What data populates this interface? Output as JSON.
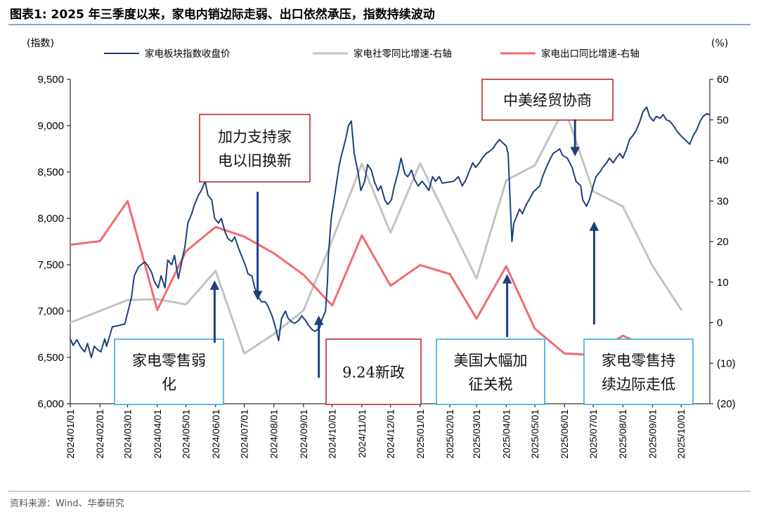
{
  "title": "图表1:  2025 年三季度以来，家电内销边际走弱、出口依然承压，指数持续波动",
  "source": "资料来源：Wind、华泰研究",
  "colors": {
    "index": "#1f3f7a",
    "retail": "#c3c3c3",
    "export": "#f26b6e",
    "arrow": "#1f3f7a",
    "box_red": "#c0282e",
    "box_blue": "#35a8df"
  },
  "chart_data": {
    "type": "line",
    "left_axis": {
      "unit_label": "(指数)",
      "min": 6000,
      "max": 9500,
      "ticks": [
        "6,000",
        "6,500",
        "7,000",
        "7,500",
        "8,000",
        "8,500",
        "9,000",
        "9,500"
      ]
    },
    "right_axis": {
      "unit_label": "(%)",
      "min": -20,
      "max": 60,
      "ticks": [
        "(20)",
        "(10)",
        "0",
        "10",
        "20",
        "30",
        "40",
        "50",
        "60"
      ]
    },
    "x_ticks": [
      "2024/01/01",
      "2024/02/01",
      "2024/03/01",
      "2024/04/01",
      "2024/05/01",
      "2024/06/01",
      "2024/07/01",
      "2024/08/01",
      "2024/09/01",
      "2024/10/01",
      "2024/11/01",
      "2024/12/01",
      "2025/01/01",
      "2025/02/01",
      "2025/03/01",
      "2025/04/01",
      "2025/05/01",
      "2025/06/01",
      "2025/07/01",
      "2025/08/01",
      "2025/09/01",
      "2025/10/01"
    ],
    "x_range": [
      "2024-01-01",
      "2025-10-31"
    ],
    "series": [
      {
        "name": "家电板块指数收盘价",
        "axis": "left",
        "points": [
          [
            "2024-01-01",
            6700
          ],
          [
            "2024-01-04",
            6630
          ],
          [
            "2024-01-08",
            6690
          ],
          [
            "2024-01-12",
            6610
          ],
          [
            "2024-01-16",
            6560
          ],
          [
            "2024-01-19",
            6650
          ],
          [
            "2024-01-23",
            6500
          ],
          [
            "2024-01-26",
            6620
          ],
          [
            "2024-01-30",
            6580
          ],
          [
            "2024-02-02",
            6560
          ],
          [
            "2024-02-06",
            6700
          ],
          [
            "2024-02-08",
            6620
          ],
          [
            "2024-02-14",
            6830
          ],
          [
            "2024-02-19",
            6840
          ],
          [
            "2024-02-23",
            6850
          ],
          [
            "2024-02-27",
            6860
          ],
          [
            "2024-03-01",
            6980
          ],
          [
            "2024-03-05",
            7150
          ],
          [
            "2024-03-08",
            7380
          ],
          [
            "2024-03-12",
            7470
          ],
          [
            "2024-03-15",
            7500
          ],
          [
            "2024-03-19",
            7530
          ],
          [
            "2024-03-22",
            7490
          ],
          [
            "2024-03-26",
            7420
          ],
          [
            "2024-03-29",
            7320
          ],
          [
            "2024-04-02",
            7250
          ],
          [
            "2024-04-05",
            7380
          ],
          [
            "2024-04-09",
            7250
          ],
          [
            "2024-04-12",
            7550
          ],
          [
            "2024-04-16",
            7500
          ],
          [
            "2024-04-19",
            7600
          ],
          [
            "2024-04-23",
            7350
          ],
          [
            "2024-04-26",
            7500
          ],
          [
            "2024-04-30",
            7700
          ],
          [
            "2024-05-03",
            7950
          ],
          [
            "2024-05-07",
            8050
          ],
          [
            "2024-05-10",
            8150
          ],
          [
            "2024-05-14",
            8250
          ],
          [
            "2024-05-17",
            8300
          ],
          [
            "2024-05-21",
            8400
          ],
          [
            "2024-05-24",
            8250
          ],
          [
            "2024-05-28",
            8200
          ],
          [
            "2024-05-31",
            8000
          ],
          [
            "2024-06-04",
            7950
          ],
          [
            "2024-06-07",
            8000
          ],
          [
            "2024-06-11",
            7850
          ],
          [
            "2024-06-14",
            7780
          ],
          [
            "2024-06-18",
            7750
          ],
          [
            "2024-06-21",
            7800
          ],
          [
            "2024-06-25",
            7680
          ],
          [
            "2024-06-28",
            7600
          ],
          [
            "2024-07-02",
            7500
          ],
          [
            "2024-07-05",
            7400
          ],
          [
            "2024-07-09",
            7380
          ],
          [
            "2024-07-12",
            7250
          ],
          [
            "2024-07-16",
            7150
          ],
          [
            "2024-07-19",
            7100
          ],
          [
            "2024-07-23",
            7100
          ],
          [
            "2024-07-26",
            7050
          ],
          [
            "2024-07-30",
            6950
          ],
          [
            "2024-08-02",
            6850
          ],
          [
            "2024-08-06",
            6680
          ],
          [
            "2024-08-09",
            6920
          ],
          [
            "2024-08-13",
            7000
          ],
          [
            "2024-08-16",
            6920
          ],
          [
            "2024-08-20",
            6880
          ],
          [
            "2024-08-23",
            6870
          ],
          [
            "2024-08-27",
            6900
          ],
          [
            "2024-08-30",
            6950
          ],
          [
            "2024-09-03",
            6900
          ],
          [
            "2024-09-06",
            6850
          ],
          [
            "2024-09-10",
            6800
          ],
          [
            "2024-09-13",
            6780
          ],
          [
            "2024-09-18",
            6820
          ],
          [
            "2024-09-20",
            6900
          ],
          [
            "2024-09-24",
            7000
          ],
          [
            "2024-09-26",
            7300
          ],
          [
            "2024-09-27",
            7600
          ],
          [
            "2024-09-30",
            8000
          ],
          [
            "2024-10-08",
            8550
          ],
          [
            "2024-10-10",
            8650
          ],
          [
            "2024-10-15",
            8850
          ],
          [
            "2024-10-18",
            9000
          ],
          [
            "2024-10-21",
            9050
          ],
          [
            "2024-10-24",
            8700
          ],
          [
            "2024-10-28",
            8500
          ],
          [
            "2024-10-31",
            8300
          ],
          [
            "2024-11-04",
            8400
          ],
          [
            "2024-11-07",
            8580
          ],
          [
            "2024-11-11",
            8520
          ],
          [
            "2024-11-14",
            8400
          ],
          [
            "2024-11-18",
            8300
          ],
          [
            "2024-11-21",
            8350
          ],
          [
            "2024-11-25",
            8200
          ],
          [
            "2024-11-28",
            8150
          ],
          [
            "2024-12-02",
            8200
          ],
          [
            "2024-12-05",
            8350
          ],
          [
            "2024-12-09",
            8500
          ],
          [
            "2024-12-12",
            8650
          ],
          [
            "2024-12-16",
            8480
          ],
          [
            "2024-12-19",
            8450
          ],
          [
            "2024-12-23",
            8520
          ],
          [
            "2024-12-26",
            8420
          ],
          [
            "2024-12-30",
            8350
          ],
          [
            "2025-01-03",
            8400
          ],
          [
            "2025-01-07",
            8350
          ],
          [
            "2025-01-10",
            8300
          ],
          [
            "2025-01-14",
            8450
          ],
          [
            "2025-01-17",
            8400
          ],
          [
            "2025-01-21",
            8450
          ],
          [
            "2025-01-24",
            8380
          ],
          [
            "2025-02-05",
            8400
          ],
          [
            "2025-02-10",
            8450
          ],
          [
            "2025-02-14",
            8350
          ],
          [
            "2025-02-18",
            8420
          ],
          [
            "2025-02-21",
            8500
          ],
          [
            "2025-02-25",
            8600
          ],
          [
            "2025-02-28",
            8550
          ],
          [
            "2025-03-04",
            8600
          ],
          [
            "2025-03-07",
            8650
          ],
          [
            "2025-03-11",
            8700
          ],
          [
            "2025-03-14",
            8720
          ],
          [
            "2025-03-18",
            8750
          ],
          [
            "2025-03-21",
            8800
          ],
          [
            "2025-03-25",
            8850
          ],
          [
            "2025-03-28",
            8820
          ],
          [
            "2025-04-01",
            8780
          ],
          [
            "2025-04-03",
            8700
          ],
          [
            "2025-04-07",
            7750
          ],
          [
            "2025-04-09",
            7950
          ],
          [
            "2025-04-11",
            8000
          ],
          [
            "2025-04-15",
            8100
          ],
          [
            "2025-04-18",
            8050
          ],
          [
            "2025-04-22",
            8150
          ],
          [
            "2025-04-25",
            8200
          ],
          [
            "2025-04-29",
            8280
          ],
          [
            "2025-05-06",
            8350
          ],
          [
            "2025-05-09",
            8450
          ],
          [
            "2025-05-13",
            8550
          ],
          [
            "2025-05-16",
            8620
          ],
          [
            "2025-05-20",
            8700
          ],
          [
            "2025-05-23",
            8720
          ],
          [
            "2025-05-27",
            8750
          ],
          [
            "2025-05-30",
            8680
          ],
          [
            "2025-06-04",
            8650
          ],
          [
            "2025-06-09",
            8550
          ],
          [
            "2025-06-13",
            8400
          ],
          [
            "2025-06-18",
            8350
          ],
          [
            "2025-06-20",
            8200
          ],
          [
            "2025-06-24",
            8130
          ],
          [
            "2025-06-27",
            8200
          ],
          [
            "2025-07-01",
            8350
          ],
          [
            "2025-07-04",
            8450
          ],
          [
            "2025-07-08",
            8500
          ],
          [
            "2025-07-11",
            8550
          ],
          [
            "2025-07-15",
            8600
          ],
          [
            "2025-07-18",
            8650
          ],
          [
            "2025-07-22",
            8600
          ],
          [
            "2025-07-25",
            8650
          ],
          [
            "2025-07-29",
            8700
          ],
          [
            "2025-08-01",
            8650
          ],
          [
            "2025-08-05",
            8750
          ],
          [
            "2025-08-08",
            8850
          ],
          [
            "2025-08-12",
            8900
          ],
          [
            "2025-08-15",
            8950
          ],
          [
            "2025-08-19",
            9050
          ],
          [
            "2025-08-22",
            9150
          ],
          [
            "2025-08-26",
            9200
          ],
          [
            "2025-08-29",
            9100
          ],
          [
            "2025-09-02",
            9050
          ],
          [
            "2025-09-05",
            9100
          ],
          [
            "2025-09-09",
            9080
          ],
          [
            "2025-09-12",
            9120
          ],
          [
            "2025-09-16",
            9060
          ],
          [
            "2025-09-19",
            9050
          ],
          [
            "2025-09-23",
            9000
          ],
          [
            "2025-09-26",
            8950
          ],
          [
            "2025-09-30",
            8900
          ],
          [
            "2025-10-10",
            8800
          ],
          [
            "2025-10-14",
            8900
          ],
          [
            "2025-10-17",
            8950
          ],
          [
            "2025-10-21",
            9050
          ],
          [
            "2025-10-24",
            9100
          ],
          [
            "2025-10-28",
            9130
          ],
          [
            "2025-10-30",
            9120
          ]
        ]
      },
      {
        "name": "家电社零同比增速-右轴",
        "axis": "right",
        "points": [
          [
            "2024-01-01",
            0
          ],
          [
            "2024-03-01",
            5.6
          ],
          [
            "2024-04-01",
            5.8
          ],
          [
            "2024-05-01",
            4.5
          ],
          [
            "2024-06-01",
            12.8
          ],
          [
            "2024-07-01",
            -7.6
          ],
          [
            "2024-08-01",
            -2.8
          ],
          [
            "2024-09-01",
            3.0
          ],
          [
            "2024-10-01",
            20.3
          ],
          [
            "2024-11-01",
            39.2
          ],
          [
            "2024-12-01",
            22.2
          ],
          [
            "2025-01-01",
            39.3
          ],
          [
            "2025-03-01",
            10.9
          ],
          [
            "2025-04-01",
            35.1
          ],
          [
            "2025-05-01",
            38.8
          ],
          [
            "2025-06-01",
            53.0
          ],
          [
            "2025-07-01",
            32.4
          ],
          [
            "2025-08-01",
            28.7
          ],
          [
            "2025-09-01",
            14.0
          ],
          [
            "2025-10-01",
            3.2
          ]
        ]
      },
      {
        "name": "家电出口同比增速-右轴",
        "axis": "right",
        "points": [
          [
            "2024-01-01",
            19.2
          ],
          [
            "2024-02-01",
            20.1
          ],
          [
            "2024-03-01",
            30.0
          ],
          [
            "2024-04-01",
            3.1
          ],
          [
            "2024-05-01",
            17.6
          ],
          [
            "2024-06-01",
            23.6
          ],
          [
            "2024-07-01",
            21.2
          ],
          [
            "2024-08-01",
            17.1
          ],
          [
            "2024-09-01",
            11.8
          ],
          [
            "2024-10-01",
            4.2
          ],
          [
            "2024-11-01",
            21.5
          ],
          [
            "2024-12-01",
            9.1
          ],
          [
            "2025-01-01",
            14.2
          ],
          [
            "2025-02-01",
            12.0
          ],
          [
            "2025-03-01",
            1.0
          ],
          [
            "2025-04-01",
            13.9
          ],
          [
            "2025-05-01",
            -1.5
          ],
          [
            "2025-06-01",
            -7.6
          ],
          [
            "2025-07-01",
            -8.0
          ],
          [
            "2025-08-01",
            -3.2
          ],
          [
            "2025-09-01",
            -6.5
          ],
          [
            "2025-10-01",
            -8.3
          ]
        ]
      }
    ],
    "annotations": [
      {
        "text": [
          "家电零售弱",
          "化"
        ],
        "box": "blue",
        "arrow_date": "2024-05-31",
        "arrow_dir": "up"
      },
      {
        "text": [
          "加力支持家",
          "电以旧换新"
        ],
        "box": "red",
        "arrow_date": "2024-07-15",
        "arrow_dir": "down"
      },
      {
        "text": [
          "9.24新政"
        ],
        "box": "red",
        "arrow_date": "2024-09-17",
        "arrow_dir": "up"
      },
      {
        "text": [
          "美国大幅加",
          "征关税"
        ],
        "box": "blue",
        "arrow_date": "2025-04-02",
        "arrow_dir": "up"
      },
      {
        "text": [
          "中美经贸协商"
        ],
        "box": "red",
        "arrow_date": "2025-06-12",
        "arrow_dir": "down"
      },
      {
        "text": [
          "家电零售持",
          "续边际走低"
        ],
        "box": "blue",
        "arrow_date": "2025-07-02",
        "arrow_dir": "up"
      }
    ]
  }
}
